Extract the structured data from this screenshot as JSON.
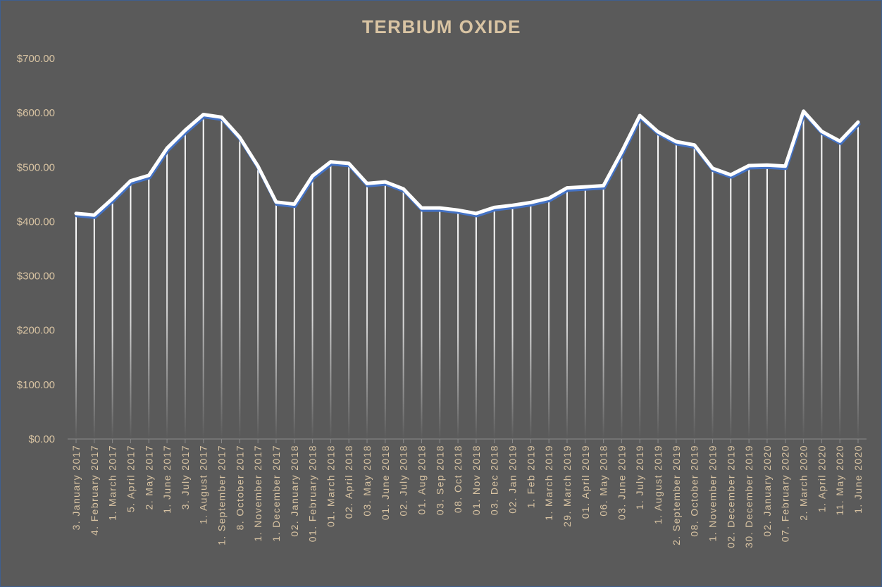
{
  "chart_data": {
    "type": "line",
    "title": "TERBIUM  OXIDE",
    "xlabel": "",
    "ylabel": "",
    "ylim": [
      0,
      700
    ],
    "yticks": [
      0,
      100,
      200,
      300,
      400,
      500,
      600,
      700
    ],
    "ytick_labels": [
      "$0.00",
      "$100.00",
      "$200.00",
      "$300.00",
      "$400.00",
      "$500.00",
      "$600.00",
      "$700.00"
    ],
    "grid": false,
    "drop_lines": true,
    "legend": "none",
    "line_color": "#ffffff",
    "shadow_color": "#4472c4",
    "categories": [
      "3. January 2017",
      "4. February 2017",
      "1. March 2017",
      "5. April 2017",
      "2. May 2017",
      "1. June 2017",
      "3. July 2017",
      "1. August 2017",
      "1. September 2017",
      "8. October 2017",
      "1. November 2017",
      "1. December 2017",
      "02. January 2018",
      "01. February 2018",
      "01. March 2018",
      "02. April 2018",
      "03. May 2018",
      "01. June 2018",
      "02. July 2018",
      "01. Aug 2018",
      "03. Sep 2018",
      "08. Oct 2018",
      "01. Nov 2018",
      "03. Dec 2018",
      "02. Jan 2019",
      "1. Feb 2019",
      "1. March 2019",
      "29. March 2019",
      "01. April 2019",
      "06. May 2018",
      "03. June 2019",
      "1. July 2019",
      "1. August 2019",
      "2. September 2019",
      "08. October 2019",
      "1. November 2019",
      "02. December 2019",
      "30. December 2019",
      "02. January 2020",
      "07. February 2020",
      "2. March 2020",
      "1. April 2020",
      "11. May 2020",
      "1. June 2020"
    ],
    "values": [
      415,
      412,
      442,
      475,
      485,
      535,
      568,
      597,
      592,
      555,
      502,
      436,
      432,
      484,
      510,
      507,
      470,
      473,
      460,
      425,
      425,
      421,
      415,
      426,
      430,
      435,
      443,
      462,
      464,
      466,
      528,
      595,
      565,
      547,
      541,
      498,
      486,
      503,
      504,
      502,
      603,
      566,
      548,
      583
    ]
  }
}
